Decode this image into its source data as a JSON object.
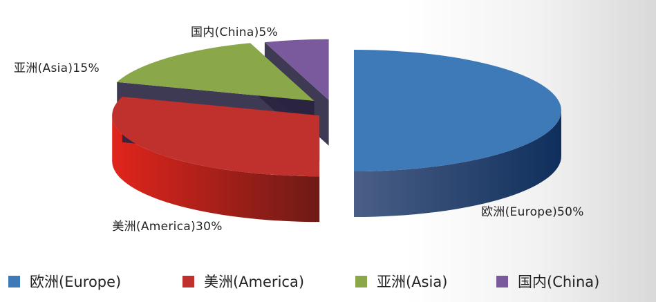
{
  "chart_data": {
    "type": "pie",
    "title": "",
    "categories": [
      "欧洲(Europe)",
      "美洲(America)",
      "亚洲(Asia)",
      "国内(China)"
    ],
    "values": [
      50,
      30,
      15,
      5
    ],
    "slice_labels": [
      "欧洲(Europe)50%",
      "美洲(America)30%",
      "亚洲(Asia)15%",
      "国内(China)5%"
    ],
    "colors": [
      "#3f7ab8",
      "#c0302c",
      "#8aa84a",
      "#7a5a9c"
    ],
    "style": "3d-exploded",
    "legend_position": "bottom"
  },
  "legend": {
    "items": [
      {
        "label": "欧洲(Europe)",
        "color": "#3f7ab8"
      },
      {
        "label": "美洲(America)",
        "color": "#c0302c"
      },
      {
        "label": "亚洲(Asia)",
        "color": "#8aa84a"
      },
      {
        "label": "国内(China)",
        "color": "#7a5a9c"
      }
    ]
  }
}
